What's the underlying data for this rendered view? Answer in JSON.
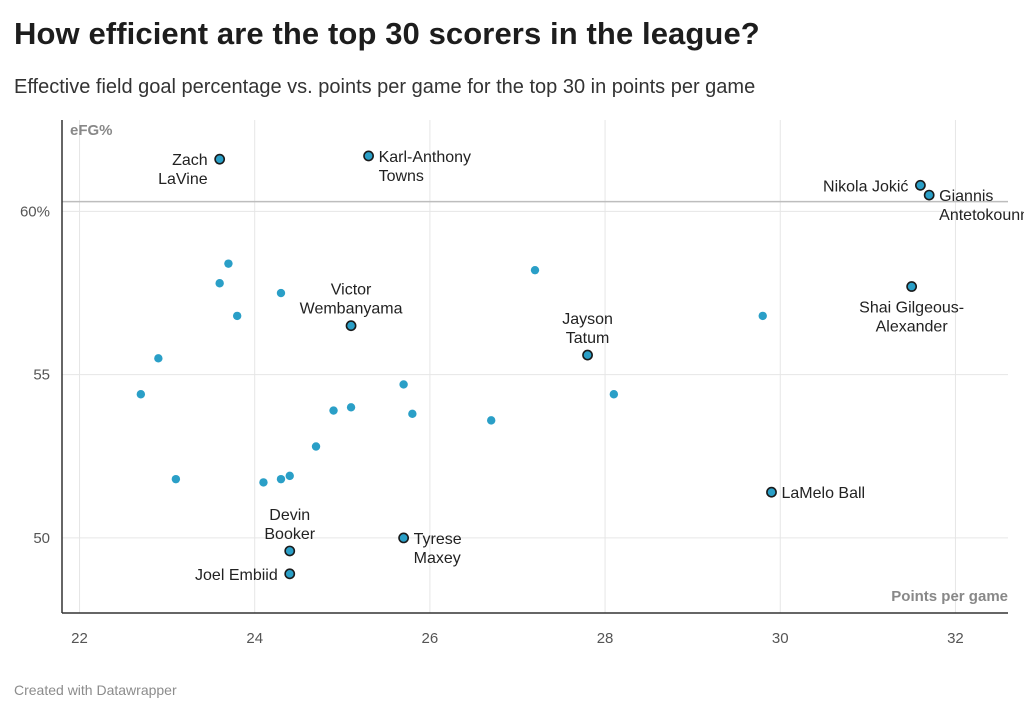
{
  "title": "How efficient are the top 30 scorers in the league?",
  "subtitle": "Effective field goal percentage vs. points per game for the top 30 in points per game",
  "footer": "Created with Datawrapper",
  "colors": {
    "dot": "#2a9fc7",
    "labeled_dot": "#1f6f8b",
    "grid": "#e6e6e6",
    "axis": "#333333",
    "ref_line": "#bdbdbd"
  },
  "chart_data": {
    "type": "scatter",
    "xlabel": "Points per game",
    "ylabel": "eFG%",
    "xlim": [
      21.8,
      32.6
    ],
    "ylim": [
      47.7,
      62.8
    ],
    "x_ticks": [
      22,
      24,
      26,
      28,
      30,
      32
    ],
    "x_tick_labels": [
      "22",
      "24",
      "26",
      "28",
      "30",
      "32"
    ],
    "y_ticks": [
      50,
      55,
      60
    ],
    "y_tick_labels": [
      "50",
      "55",
      "60%"
    ],
    "reference_line_y": 60.3,
    "points": [
      {
        "x": 23.6,
        "y": 61.6,
        "label": [
          "Zach",
          "LaVine"
        ],
        "label_pos": "left"
      },
      {
        "x": 25.3,
        "y": 61.7,
        "label": [
          "Karl-Anthony",
          "Towns"
        ],
        "label_pos": "right"
      },
      {
        "x": 31.6,
        "y": 60.8,
        "label": [
          "Nikola Jokić"
        ],
        "label_pos": "left"
      },
      {
        "x": 31.7,
        "y": 60.5,
        "label": [
          "Giannis",
          "Antetokounmpo"
        ],
        "label_pos": "right"
      },
      {
        "x": 25.1,
        "y": 56.5,
        "label": [
          "Victor",
          "Wembanyama"
        ],
        "label_pos": "above"
      },
      {
        "x": 27.8,
        "y": 55.6,
        "label": [
          "Jayson",
          "Tatum"
        ],
        "label_pos": "above"
      },
      {
        "x": 31.5,
        "y": 57.7,
        "label": [
          "Shai Gilgeous-",
          "Alexander"
        ],
        "label_pos": "below"
      },
      {
        "x": 29.9,
        "y": 51.4,
        "label": [
          "LaMelo Ball"
        ],
        "label_pos": "right"
      },
      {
        "x": 24.4,
        "y": 49.6,
        "label": [
          "Devin",
          "Booker"
        ],
        "label_pos": "above"
      },
      {
        "x": 24.4,
        "y": 48.9,
        "label": [
          "Joel Embiid"
        ],
        "label_pos": "left"
      },
      {
        "x": 25.7,
        "y": 50.0,
        "label": [
          "Tyrese",
          "Maxey"
        ],
        "label_pos": "right"
      },
      {
        "x": 23.7,
        "y": 58.4
      },
      {
        "x": 23.6,
        "y": 57.8
      },
      {
        "x": 23.8,
        "y": 56.8
      },
      {
        "x": 24.3,
        "y": 57.5
      },
      {
        "x": 22.9,
        "y": 55.5
      },
      {
        "x": 22.7,
        "y": 54.4
      },
      {
        "x": 23.1,
        "y": 51.8
      },
      {
        "x": 24.1,
        "y": 51.7
      },
      {
        "x": 24.3,
        "y": 51.8
      },
      {
        "x": 24.4,
        "y": 51.9
      },
      {
        "x": 24.7,
        "y": 52.8
      },
      {
        "x": 24.9,
        "y": 53.9
      },
      {
        "x": 25.1,
        "y": 54.0
      },
      {
        "x": 25.7,
        "y": 54.7
      },
      {
        "x": 25.8,
        "y": 53.8
      },
      {
        "x": 26.7,
        "y": 53.6
      },
      {
        "x": 27.2,
        "y": 58.2
      },
      {
        "x": 28.1,
        "y": 54.4
      },
      {
        "x": 29.8,
        "y": 56.8
      }
    ]
  }
}
